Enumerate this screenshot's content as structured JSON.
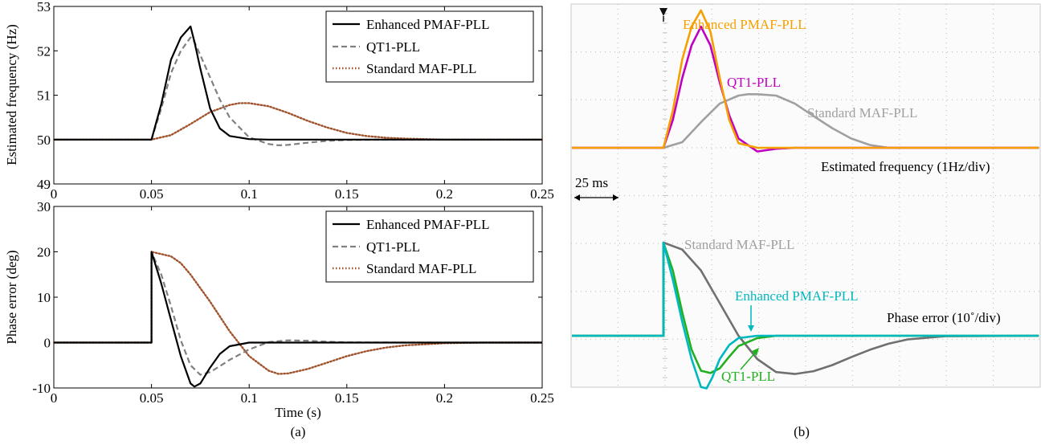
{
  "panel_a": {
    "caption": "(a)",
    "top": {
      "ylabel": "Estimated frequency (Hz)",
      "ylim": [
        49,
        53
      ],
      "yticks": [
        "49",
        "50",
        "51",
        "52",
        "53"
      ],
      "xlim": [
        0,
        0.25
      ],
      "xticks": [
        "0",
        "0.05",
        "0.1",
        "0.15",
        "0.2",
        "0.25"
      ],
      "legend": [
        "Enhanced PMAF-PLL",
        "QT1-PLL",
        "Standard MAF-PLL"
      ]
    },
    "bottom": {
      "ylabel": "Phase error (deg)",
      "xlabel": "Time (s)",
      "ylim": [
        -10,
        30
      ],
      "yticks": [
        "-10",
        "0",
        "10",
        "20",
        "30"
      ],
      "xlim": [
        0,
        0.25
      ],
      "xticks": [
        "0",
        "0.05",
        "0.1",
        "0.15",
        "0.2",
        "0.25"
      ],
      "legend": [
        "Enhanced PMAF-PLL",
        "QT1-PLL",
        "Standard MAF-PLL"
      ]
    }
  },
  "panel_b": {
    "caption": "(b)",
    "time_scale_label": "25 ms",
    "freq_trace_label": "Estimated frequency (1Hz/div)",
    "phase_trace_label": "Phase error (10˚/div)",
    "freq_labels": {
      "enhanced": "Enhanced PMAF-PLL",
      "qt1": "QT1-PLL",
      "standard": "Standard MAF-PLL"
    },
    "phase_labels": {
      "enhanced": "Enhanced PMAF-PLL",
      "qt1": "QT1-PLL",
      "standard": "Standard MAF-PLL"
    },
    "colors": {
      "freq_enhanced": "#f5a000",
      "freq_qt1": "#c000c0",
      "freq_standard": "#a0a0a0",
      "phase_enhanced": "#00b8c0",
      "phase_qt1": "#20b020",
      "phase_standard": "#707070"
    }
  },
  "chart_data": [
    {
      "type": "line",
      "xlim": [
        0,
        0.25
      ],
      "ylim": [
        49,
        53
      ],
      "ylabel": "Estimated frequency (Hz)",
      "grid": false,
      "legend_position": "top-right",
      "series": [
        {
          "name": "Enhanced PMAF-PLL",
          "color": "#000000",
          "style": "solid",
          "x": [
            0,
            0.05,
            0.055,
            0.06,
            0.065,
            0.07,
            0.072,
            0.075,
            0.08,
            0.085,
            0.09,
            0.1,
            0.11,
            0.15,
            0.25
          ],
          "y": [
            50,
            50,
            50.8,
            51.8,
            52.3,
            52.55,
            52.2,
            51.6,
            50.7,
            50.25,
            50.08,
            50.01,
            50,
            50,
            50
          ]
        },
        {
          "name": "QT1-PLL",
          "color": "#808080",
          "style": "dashed",
          "x": [
            0,
            0.05,
            0.055,
            0.06,
            0.065,
            0.07,
            0.072,
            0.08,
            0.085,
            0.09,
            0.1,
            0.11,
            0.115,
            0.12,
            0.13,
            0.14,
            0.15,
            0.17,
            0.25
          ],
          "y": [
            50,
            50,
            50.7,
            51.5,
            52.0,
            52.3,
            52.2,
            51.4,
            50.9,
            50.5,
            50.05,
            49.9,
            49.87,
            49.88,
            49.93,
            49.97,
            49.99,
            50,
            50
          ]
        },
        {
          "name": "Standard MAF-PLL",
          "color": "#a0522d",
          "style": "dotted",
          "x": [
            0,
            0.05,
            0.06,
            0.07,
            0.08,
            0.09,
            0.095,
            0.1,
            0.11,
            0.12,
            0.13,
            0.14,
            0.15,
            0.16,
            0.17,
            0.18,
            0.2,
            0.25
          ],
          "y": [
            50,
            50,
            50.1,
            50.35,
            50.62,
            50.78,
            50.82,
            50.82,
            50.75,
            50.6,
            50.42,
            50.27,
            50.15,
            50.08,
            50.04,
            50.02,
            50,
            50
          ]
        }
      ]
    },
    {
      "type": "line",
      "xlim": [
        0,
        0.25
      ],
      "ylim": [
        -10,
        30
      ],
      "xlabel": "Time (s)",
      "ylabel": "Phase error (deg)",
      "grid": false,
      "legend_position": "top-right",
      "series": [
        {
          "name": "Enhanced PMAF-PLL",
          "color": "#000000",
          "style": "solid",
          "x": [
            0,
            0.05,
            0.05,
            0.055,
            0.06,
            0.065,
            0.07,
            0.072,
            0.075,
            0.08,
            0.085,
            0.09,
            0.1,
            0.11,
            0.25
          ],
          "y": [
            0,
            0,
            20,
            13,
            5,
            -3,
            -9,
            -9.7,
            -9,
            -5.5,
            -2.5,
            -0.8,
            0,
            0,
            0
          ]
        },
        {
          "name": "QT1-PLL",
          "color": "#808080",
          "style": "dashed",
          "x": [
            0,
            0.05,
            0.05,
            0.055,
            0.06,
            0.065,
            0.07,
            0.075,
            0.08,
            0.085,
            0.09,
            0.1,
            0.11,
            0.12,
            0.13,
            0.14,
            0.15,
            0.18,
            0.25
          ],
          "y": [
            0,
            0,
            20,
            15,
            8,
            0.5,
            -5,
            -7.1,
            -6.5,
            -5.2,
            -3.8,
            -1.5,
            0.1,
            0.5,
            0.4,
            0.2,
            0.05,
            0,
            0
          ]
        },
        {
          "name": "Standard MAF-PLL",
          "color": "#a0522d",
          "style": "dotted",
          "x": [
            0,
            0.05,
            0.05,
            0.06,
            0.065,
            0.07,
            0.08,
            0.09,
            0.1,
            0.11,
            0.115,
            0.12,
            0.13,
            0.14,
            0.15,
            0.16,
            0.17,
            0.18,
            0.2,
            0.22,
            0.25
          ],
          "y": [
            0,
            0,
            20,
            19,
            17.5,
            15,
            9,
            2.5,
            -3,
            -6.2,
            -6.9,
            -6.8,
            -5.8,
            -4.4,
            -3,
            -1.9,
            -1.1,
            -0.6,
            -0.15,
            0,
            0
          ]
        }
      ]
    },
    {
      "type": "line",
      "series": [
        {
          "name": "Enhanced PMAF-PLL",
          "color": "#f5a000",
          "x": [
            0,
            0.05,
            0.055,
            0.06,
            0.065,
            0.07,
            0.075,
            0.08,
            0.085,
            0.09,
            0.1,
            0.25
          ],
          "y": [
            50,
            50,
            50.8,
            51.9,
            52.6,
            52.95,
            52.5,
            51.5,
            50.6,
            50.1,
            50,
            50
          ]
        },
        {
          "name": "QT1-PLL",
          "color": "#c000c0",
          "x": [
            0,
            0.05,
            0.055,
            0.06,
            0.065,
            0.07,
            0.075,
            0.08,
            0.085,
            0.09,
            0.1,
            0.11,
            0.12,
            0.25
          ],
          "y": [
            50,
            50,
            50.6,
            51.5,
            52.2,
            52.6,
            52.2,
            51.4,
            50.7,
            50.2,
            49.92,
            49.98,
            50,
            50
          ]
        },
        {
          "name": "Standard MAF-PLL",
          "color": "#a0a0a0",
          "x": [
            0,
            0.05,
            0.06,
            0.07,
            0.08,
            0.09,
            0.095,
            0.1,
            0.11,
            0.12,
            0.13,
            0.14,
            0.15,
            0.16,
            0.17,
            0.25
          ],
          "y": [
            50,
            50,
            50.12,
            50.55,
            50.95,
            51.12,
            51.15,
            51.15,
            51.12,
            50.95,
            50.68,
            50.42,
            50.2,
            50.06,
            50,
            50
          ]
        }
      ]
    },
    {
      "type": "line",
      "series": [
        {
          "name": "Enhanced PMAF-PLL",
          "color": "#00b8c0",
          "x": [
            0,
            0.05,
            0.05,
            0.055,
            0.06,
            0.065,
            0.07,
            0.073,
            0.076,
            0.08,
            0.085,
            0.09,
            0.1,
            0.25
          ],
          "y": [
            0,
            0,
            20,
            12,
            3,
            -5,
            -11,
            -11.3,
            -9,
            -5,
            -2,
            -0.5,
            0,
            0
          ]
        },
        {
          "name": "QT1-PLL",
          "color": "#20b020",
          "x": [
            0,
            0.05,
            0.05,
            0.055,
            0.06,
            0.065,
            0.07,
            0.075,
            0.08,
            0.085,
            0.09,
            0.1,
            0.11,
            0.25
          ],
          "y": [
            0,
            0,
            20,
            14,
            5,
            -3,
            -7.5,
            -8,
            -7,
            -4.5,
            -2.2,
            -0.5,
            0,
            0
          ]
        },
        {
          "name": "Standard MAF-PLL",
          "color": "#707070",
          "x": [
            0,
            0.05,
            0.05,
            0.06,
            0.07,
            0.08,
            0.09,
            0.1,
            0.11,
            0.12,
            0.13,
            0.14,
            0.15,
            0.16,
            0.17,
            0.18,
            0.2,
            0.25
          ],
          "y": [
            0,
            0,
            20,
            18.5,
            14,
            7,
            0,
            -5,
            -7.8,
            -8.2,
            -7.6,
            -6.3,
            -4.6,
            -3,
            -1.7,
            -0.8,
            -0.1,
            0
          ]
        }
      ]
    }
  ]
}
